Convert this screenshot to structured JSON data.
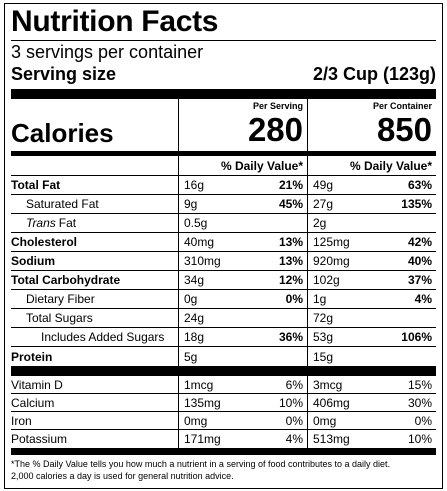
{
  "title": "Nutrition Facts",
  "servings_per_container": "3 servings per container",
  "serving_size": {
    "label": "Serving size",
    "value": "2/3 Cup (123g)"
  },
  "calories": {
    "label": "Calories",
    "columns": [
      {
        "header": "Per Serving",
        "value": "280"
      },
      {
        "header": "Per Container",
        "value": "850"
      }
    ]
  },
  "daily_value_header": [
    "% Daily Value*",
    "% Daily Value*"
  ],
  "nutrients": [
    {
      "name": "Total Fat",
      "bold": true,
      "indent": 0,
      "columns": [
        [
          "16g",
          "21%"
        ],
        [
          "49g",
          "63%"
        ]
      ]
    },
    {
      "name": "Saturated Fat",
      "bold": false,
      "indent": 1,
      "columns": [
        [
          "9g",
          "45%"
        ],
        [
          "27g",
          "135%"
        ]
      ]
    },
    {
      "italic_prefix": "Trans",
      "name": "Fat",
      "bold": false,
      "indent": 1,
      "columns": [
        [
          "0.5g"
        ],
        [
          "2g"
        ]
      ]
    },
    {
      "name": "Cholesterol",
      "bold": true,
      "indent": 0,
      "columns": [
        [
          "40mg",
          "13%"
        ],
        [
          "125mg",
          "42%"
        ]
      ]
    },
    {
      "name": "Sodium",
      "bold": true,
      "indent": 0,
      "columns": [
        [
          "310mg",
          "13%"
        ],
        [
          "920mg",
          "40%"
        ]
      ]
    },
    {
      "name": "Total Carbohydrate",
      "bold": true,
      "indent": 0,
      "columns": [
        [
          "34g",
          "12%"
        ],
        [
          "102g",
          "37%"
        ]
      ]
    },
    {
      "name": "Dietary Fiber",
      "bold": false,
      "indent": 1,
      "columns": [
        [
          "0g",
          "0%"
        ],
        [
          "1g",
          "4%"
        ]
      ]
    },
    {
      "name": "Total Sugars",
      "bold": false,
      "indent": 1,
      "columns": [
        [
          "24g"
        ],
        [
          "72g"
        ]
      ]
    },
    {
      "name": "Includes Added Sugars",
      "bold": false,
      "indent": 2,
      "columns": [
        [
          "18g",
          "36%"
        ],
        [
          "53g",
          "106%"
        ]
      ]
    },
    {
      "name": "Protein",
      "bold": true,
      "indent": 0,
      "columns": [
        [
          "5g"
        ],
        [
          "15g"
        ]
      ]
    }
  ],
  "vitamins": [
    {
      "name": "Vitamin D",
      "columns": [
        [
          "1mcg",
          "6%"
        ],
        [
          "3mcg",
          "15%"
        ]
      ]
    },
    {
      "name": "Calcium",
      "columns": [
        [
          "135mg",
          "10%"
        ],
        [
          "406mg",
          "30%"
        ]
      ]
    },
    {
      "name": "Iron",
      "columns": [
        [
          "0mg",
          "0%"
        ],
        [
          "0mg",
          "0%"
        ]
      ]
    },
    {
      "name": "Potassium",
      "columns": [
        [
          "171mg",
          "4%"
        ],
        [
          "513mg",
          "10%"
        ]
      ]
    }
  ],
  "footnote": [
    "*The % Daily Value tells you how much a nutrient in a serving of food contributes to a daily diet.",
    "2,000 calories a day is used for general nutrition advice."
  ]
}
